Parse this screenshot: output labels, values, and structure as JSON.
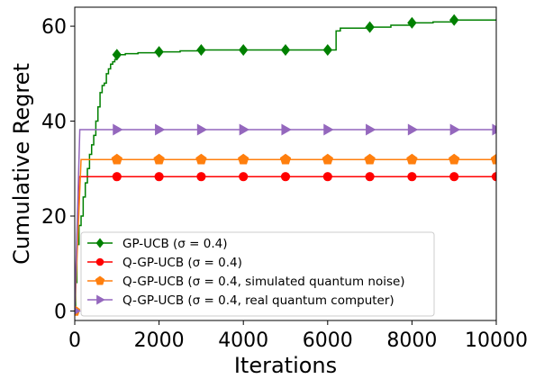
{
  "chart_data": {
    "type": "line",
    "title": "",
    "xlabel": "Iterations",
    "ylabel": "Cumulative Regret",
    "xlim": [
      0,
      10000
    ],
    "ylim": [
      -2,
      64
    ],
    "xticks": [
      0,
      2000,
      4000,
      6000,
      8000,
      10000
    ],
    "yticks": [
      0,
      20,
      40,
      60
    ],
    "xtick_labels": [
      "0",
      "2000",
      "4000",
      "6000",
      "8000",
      "10000"
    ],
    "ytick_labels": [
      "0",
      "20",
      "40",
      "60"
    ],
    "grid": false,
    "legend_position": "lower-right",
    "series": [
      {
        "name": "GP-UCB (σ = 0.4)",
        "color": "#008000",
        "marker": "diamond",
        "x": [
          0,
          20,
          50,
          100,
          150,
          200,
          250,
          300,
          350,
          400,
          450,
          500,
          550,
          600,
          650,
          700,
          750,
          800,
          850,
          900,
          950,
          1000,
          1200,
          1500,
          2000,
          2500,
          3000,
          3500,
          4000,
          4500,
          5000,
          5500,
          6000,
          6150,
          6200,
          6300,
          7000,
          7500,
          8000,
          8500,
          9000,
          9500,
          10000
        ],
        "y": [
          0,
          6,
          14,
          18,
          20,
          24,
          27,
          30,
          33,
          35,
          37,
          40,
          43,
          46,
          47.5,
          48,
          50,
          51,
          52,
          52.5,
          53,
          54,
          54.2,
          54.4,
          54.6,
          54.8,
          55,
          55,
          55,
          55,
          55,
          55,
          55,
          55,
          59,
          59.6,
          59.8,
          60.2,
          60.7,
          60.9,
          61.3,
          61.3,
          61.3
        ],
        "marker_x": [
          1000,
          2000,
          3000,
          4000,
          5000,
          6000,
          7000,
          8000,
          9000
        ],
        "marker_y": [
          54,
          54.6,
          55,
          55,
          55,
          55,
          59.8,
          60.7,
          61.3
        ]
      },
      {
        "name": "Q-GP-UCB (σ = 0.4)",
        "color": "#ff0000",
        "marker": "circle",
        "x": [
          0,
          100,
          10000
        ],
        "y": [
          0,
          28.3,
          28.3
        ],
        "marker_x": [
          0,
          1000,
          2000,
          3000,
          4000,
          5000,
          6000,
          7000,
          8000,
          9000,
          10000
        ],
        "marker_y": [
          0,
          28.3,
          28.3,
          28.3,
          28.3,
          28.3,
          28.3,
          28.3,
          28.3,
          28.3,
          28.3
        ]
      },
      {
        "name": "Q-GP-UCB (σ = 0.4, simulated quantum noise)",
        "color": "#ff7f0e",
        "marker": "pentagon",
        "x": [
          0,
          150,
          10000
        ],
        "y": [
          0,
          31.9,
          31.9
        ],
        "marker_x": [
          0,
          1000,
          2000,
          3000,
          4000,
          5000,
          6000,
          7000,
          8000,
          9000,
          10000
        ],
        "marker_y": [
          0,
          31.9,
          31.9,
          31.9,
          31.9,
          31.9,
          31.9,
          31.9,
          31.9,
          31.9,
          31.9
        ]
      },
      {
        "name": "Q-GP-UCB (σ = 0.4, real quantum computer)",
        "color": "#9467bd",
        "marker": "triangle-right",
        "x": [
          0,
          120,
          10000
        ],
        "y": [
          0,
          38.2,
          38.2
        ],
        "marker_x": [
          0,
          1000,
          2000,
          3000,
          4000,
          5000,
          6000,
          7000,
          8000,
          9000,
          10000
        ],
        "marker_y": [
          0,
          38.2,
          38.2,
          38.2,
          38.2,
          38.2,
          38.2,
          38.2,
          38.2,
          38.2,
          38.2
        ]
      }
    ]
  }
}
